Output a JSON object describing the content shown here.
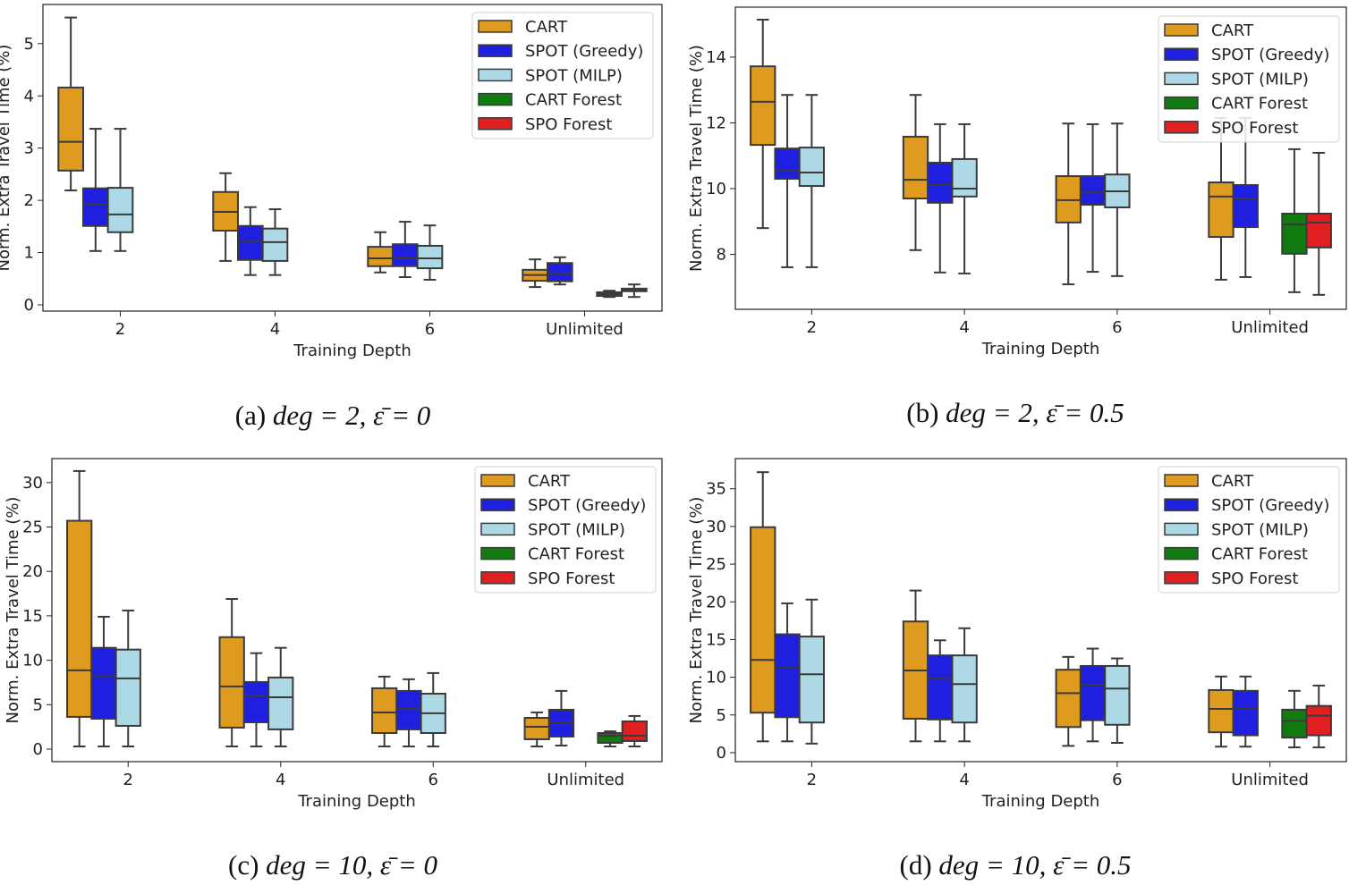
{
  "chart_data": [
    {
      "type": "box",
      "caption": {
        "label": "(a)",
        "math": "deg = 2, ε̄ = 0"
      },
      "xlabel": "Training Depth",
      "ylabel": "Norm. Extra Travel Time (%)",
      "categories": [
        "2",
        "4",
        "6",
        "Unlimited"
      ],
      "ylim": [
        -0.12,
        5.75
      ],
      "yticks": [
        0,
        1,
        2,
        3,
        4,
        5
      ],
      "legend": "top-right",
      "grid": false,
      "series": [
        {
          "name": "CART",
          "color": "#df9b20",
          "boxes": [
            [
              2.19,
              2.57,
              3.12,
              4.16,
              5.5
            ],
            [
              0.84,
              1.42,
              1.78,
              2.16,
              2.52
            ],
            [
              0.62,
              0.74,
              0.89,
              1.11,
              1.39
            ],
            [
              0.34,
              0.46,
              0.57,
              0.67,
              0.87
            ]
          ]
        },
        {
          "name": "SPOT (Greedy)",
          "color": "#1f1fe0",
          "boxes": [
            [
              1.03,
              1.51,
              1.92,
              2.23,
              3.37
            ],
            [
              0.57,
              0.86,
              1.22,
              1.51,
              1.87
            ],
            [
              0.53,
              0.74,
              0.89,
              1.16,
              1.59
            ],
            [
              0.39,
              0.45,
              0.6,
              0.8,
              0.91
            ]
          ]
        },
        {
          "name": "SPOT (MILP)",
          "color": "#add8e6",
          "boxes": [
            [
              1.03,
              1.39,
              1.73,
              2.24,
              3.37
            ],
            [
              0.57,
              0.84,
              1.2,
              1.46,
              1.83
            ],
            [
              0.48,
              0.7,
              0.89,
              1.13,
              1.52
            ],
            null
          ]
        },
        {
          "name": "CART Forest",
          "color": "#117a11",
          "boxes": [
            null,
            null,
            null,
            [
              0.15,
              0.17,
              0.21,
              0.24,
              0.27
            ]
          ]
        },
        {
          "name": "SPO Forest",
          "color": "#e02020",
          "boxes": [
            null,
            null,
            null,
            [
              0.15,
              0.26,
              0.29,
              0.31,
              0.39
            ]
          ]
        }
      ]
    },
    {
      "type": "box",
      "caption": {
        "label": "(b)",
        "math": "deg = 2, ε̄ = 0.5"
      },
      "xlabel": "Training Depth",
      "ylabel": "Norm. Extra Travel Time (%)",
      "categories": [
        "2",
        "4",
        "6",
        "Unlimited"
      ],
      "ylim": [
        6.33,
        15.52
      ],
      "yticks": [
        8,
        10,
        12,
        14
      ],
      "legend": "top-right",
      "grid": false,
      "series": [
        {
          "name": "CART",
          "color": "#df9b20",
          "boxes": [
            [
              8.8,
              11.33,
              12.64,
              13.72,
              15.14
            ],
            [
              8.13,
              9.7,
              10.27,
              11.58,
              12.85
            ],
            [
              7.09,
              8.97,
              9.65,
              10.38,
              11.98
            ],
            [
              7.23,
              8.53,
              9.76,
              10.19,
              12.15
            ]
          ]
        },
        {
          "name": "SPOT (Greedy)",
          "color": "#1f1fe0",
          "boxes": [
            [
              7.61,
              10.3,
              10.54,
              11.22,
              12.85
            ],
            [
              7.45,
              9.57,
              10.11,
              10.79,
              11.96
            ],
            [
              7.47,
              9.51,
              9.89,
              10.38,
              11.96
            ],
            [
              7.31,
              8.83,
              9.7,
              10.11,
              12.15
            ]
          ]
        },
        {
          "name": "SPOT (MILP)",
          "color": "#add8e6",
          "boxes": [
            [
              7.61,
              10.08,
              10.49,
              11.25,
              12.85
            ],
            [
              7.42,
              9.76,
              10.0,
              10.9,
              11.96
            ],
            [
              7.34,
              9.43,
              9.92,
              10.43,
              11.98
            ],
            null
          ]
        },
        {
          "name": "CART Forest",
          "color": "#117a11",
          "boxes": [
            null,
            null,
            null,
            [
              6.85,
              8.02,
              8.91,
              9.24,
              11.2
            ]
          ]
        },
        {
          "name": "SPO Forest",
          "color": "#e02020",
          "boxes": [
            null,
            null,
            null,
            [
              6.77,
              8.21,
              8.97,
              9.24,
              11.09
            ]
          ]
        }
      ]
    },
    {
      "type": "box",
      "caption": {
        "label": "(c)",
        "math": "deg = 10, ε̄ = 0"
      },
      "xlabel": "Training Depth",
      "ylabel": "Norm. Extra Travel Time (%)",
      "categories": [
        "2",
        "4",
        "6",
        "Unlimited"
      ],
      "ylim": [
        -1.41,
        32.7
      ],
      "yticks": [
        0,
        5,
        10,
        15,
        20,
        25,
        30
      ],
      "legend": "top-right",
      "grid": false,
      "series": [
        {
          "name": "CART",
          "color": "#df9b20",
          "boxes": [
            [
              0.3,
              3.63,
              8.86,
              25.7,
              31.3
            ],
            [
              0.3,
              2.42,
              7.05,
              12.6,
              16.9
            ],
            [
              0.3,
              1.81,
              4.13,
              6.85,
              8.16
            ],
            [
              0.3,
              1.11,
              2.52,
              3.52,
              4.13
            ]
          ]
        },
        {
          "name": "SPOT (Greedy)",
          "color": "#1f1fe0",
          "boxes": [
            [
              0.3,
              3.42,
              8.26,
              11.4,
              14.9
            ],
            [
              0.3,
              3.02,
              6.04,
              7.55,
              10.8
            ],
            [
              0.3,
              2.22,
              4.53,
              6.55,
              7.86
            ],
            [
              0.4,
              1.41,
              3.02,
              4.43,
              6.55
            ]
          ]
        },
        {
          "name": "SPOT (MILP)",
          "color": "#add8e6",
          "boxes": [
            [
              0.3,
              2.62,
              7.96,
              11.2,
              15.6
            ],
            [
              0.3,
              2.22,
              5.84,
              8.06,
              11.4
            ],
            [
              0.3,
              1.81,
              4.03,
              6.24,
              8.56
            ],
            null
          ]
        },
        {
          "name": "CART Forest",
          "color": "#117a11",
          "boxes": [
            null,
            null,
            null,
            [
              0.3,
              0.7,
              1.51,
              1.81,
              2.0
            ]
          ]
        },
        {
          "name": "SPO Forest",
          "color": "#e02020",
          "boxes": [
            null,
            null,
            null,
            [
              0.3,
              0.91,
              1.51,
              3.12,
              3.73
            ]
          ]
        }
      ]
    },
    {
      "type": "box",
      "caption": {
        "label": "(d)",
        "math": "deg = 10, ε̄ = 0.5"
      },
      "xlabel": "Training Depth",
      "ylabel": "Norm. Extra Travel Time (%)",
      "categories": [
        "2",
        "4",
        "6",
        "Unlimited"
      ],
      "ylim": [
        -1.19,
        39.0
      ],
      "yticks": [
        0,
        5,
        10,
        15,
        20,
        25,
        30,
        35
      ],
      "legend": "top-right",
      "grid": false,
      "series": [
        {
          "name": "CART",
          "color": "#df9b20",
          "boxes": [
            [
              1.5,
              5.3,
              12.3,
              29.9,
              37.2
            ],
            [
              1.5,
              4.5,
              10.9,
              17.4,
              21.5
            ],
            [
              0.9,
              3.4,
              7.9,
              11.0,
              12.7
            ],
            [
              0.8,
              2.7,
              5.8,
              8.3,
              10.1
            ]
          ]
        },
        {
          "name": "SPOT (Greedy)",
          "color": "#1f1fe0",
          "boxes": [
            [
              1.5,
              4.7,
              11.3,
              15.7,
              19.8
            ],
            [
              1.5,
              4.4,
              9.8,
              12.9,
              14.9
            ],
            [
              1.5,
              4.3,
              9.0,
              11.5,
              13.8
            ],
            [
              0.8,
              2.3,
              5.9,
              8.2,
              10.1
            ]
          ]
        },
        {
          "name": "SPOT (MILP)",
          "color": "#add8e6",
          "boxes": [
            [
              1.2,
              4.0,
              10.4,
              15.4,
              20.3
            ],
            [
              1.5,
              4.0,
              9.1,
              12.9,
              16.5
            ],
            [
              1.3,
              3.7,
              8.5,
              11.5,
              12.5
            ],
            null
          ]
        },
        {
          "name": "CART Forest",
          "color": "#117a11",
          "boxes": [
            null,
            null,
            null,
            [
              0.7,
              2.0,
              4.2,
              5.7,
              8.2
            ]
          ]
        },
        {
          "name": "SPO Forest",
          "color": "#e02020",
          "boxes": [
            null,
            null,
            null,
            [
              0.7,
              2.3,
              4.9,
              6.2,
              8.9
            ]
          ]
        }
      ]
    }
  ]
}
